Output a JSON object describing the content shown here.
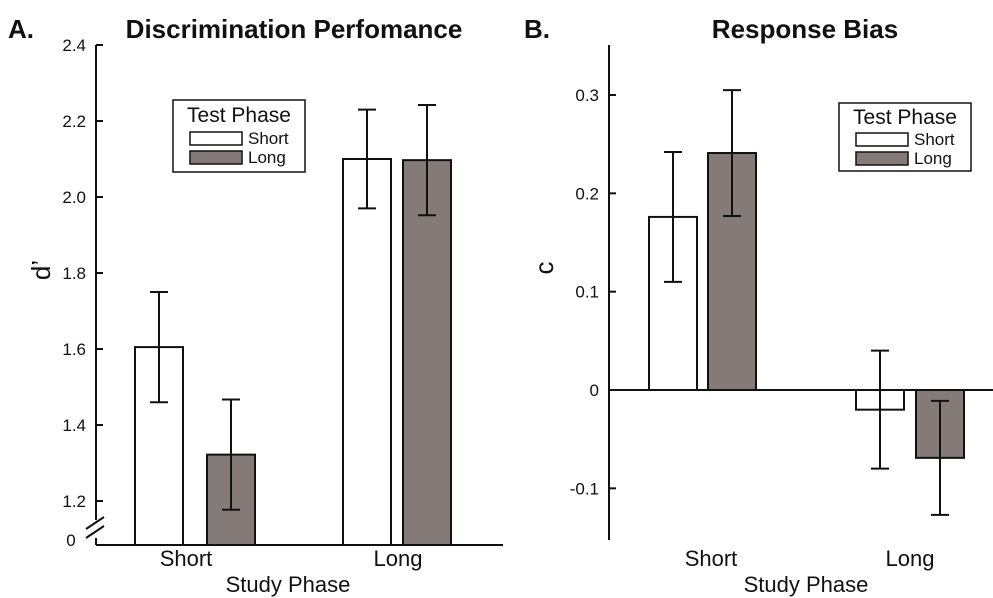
{
  "chart_data": [
    {
      "type": "bar",
      "panel": "A.",
      "title": "Discrimination Perfomance",
      "xlabel": "Study Phase",
      "ylabel": "d’",
      "categories": [
        "Short",
        "Long"
      ],
      "ylim": [
        1.1,
        2.4
      ],
      "yticks": [
        "1.2",
        "1.4",
        "1.6",
        "1.8",
        "2.0",
        "2.2",
        "2.4"
      ],
      "axis_break_label": "0",
      "legend": {
        "title": "Test Phase",
        "position": "top-left"
      },
      "series": [
        {
          "name": "Short",
          "color": "#ffffff",
          "values": [
            1.605,
            2.1
          ],
          "errors": [
            0.145,
            0.13
          ]
        },
        {
          "name": "Long",
          "color": "#847b78",
          "values": [
            1.322,
            2.097
          ],
          "errors": [
            0.145,
            0.145
          ]
        }
      ]
    },
    {
      "type": "bar",
      "panel": "B.",
      "title": "Response Bias",
      "xlabel": "Study Phase",
      "ylabel": "c",
      "categories": [
        "Short",
        "Long"
      ],
      "ylim": [
        -0.15,
        0.35
      ],
      "yticks": [
        "-0.1",
        "0",
        "0.1",
        "0.2",
        "0.3"
      ],
      "legend": {
        "title": "Test Phase",
        "position": "top-right"
      },
      "series": [
        {
          "name": "Short",
          "color": "#ffffff",
          "values": [
            0.176,
            -0.02
          ],
          "errors": [
            0.066,
            0.06
          ]
        },
        {
          "name": "Long",
          "color": "#847b78",
          "values": [
            0.241,
            -0.069
          ],
          "errors": [
            0.064,
            0.058
          ]
        }
      ]
    }
  ]
}
